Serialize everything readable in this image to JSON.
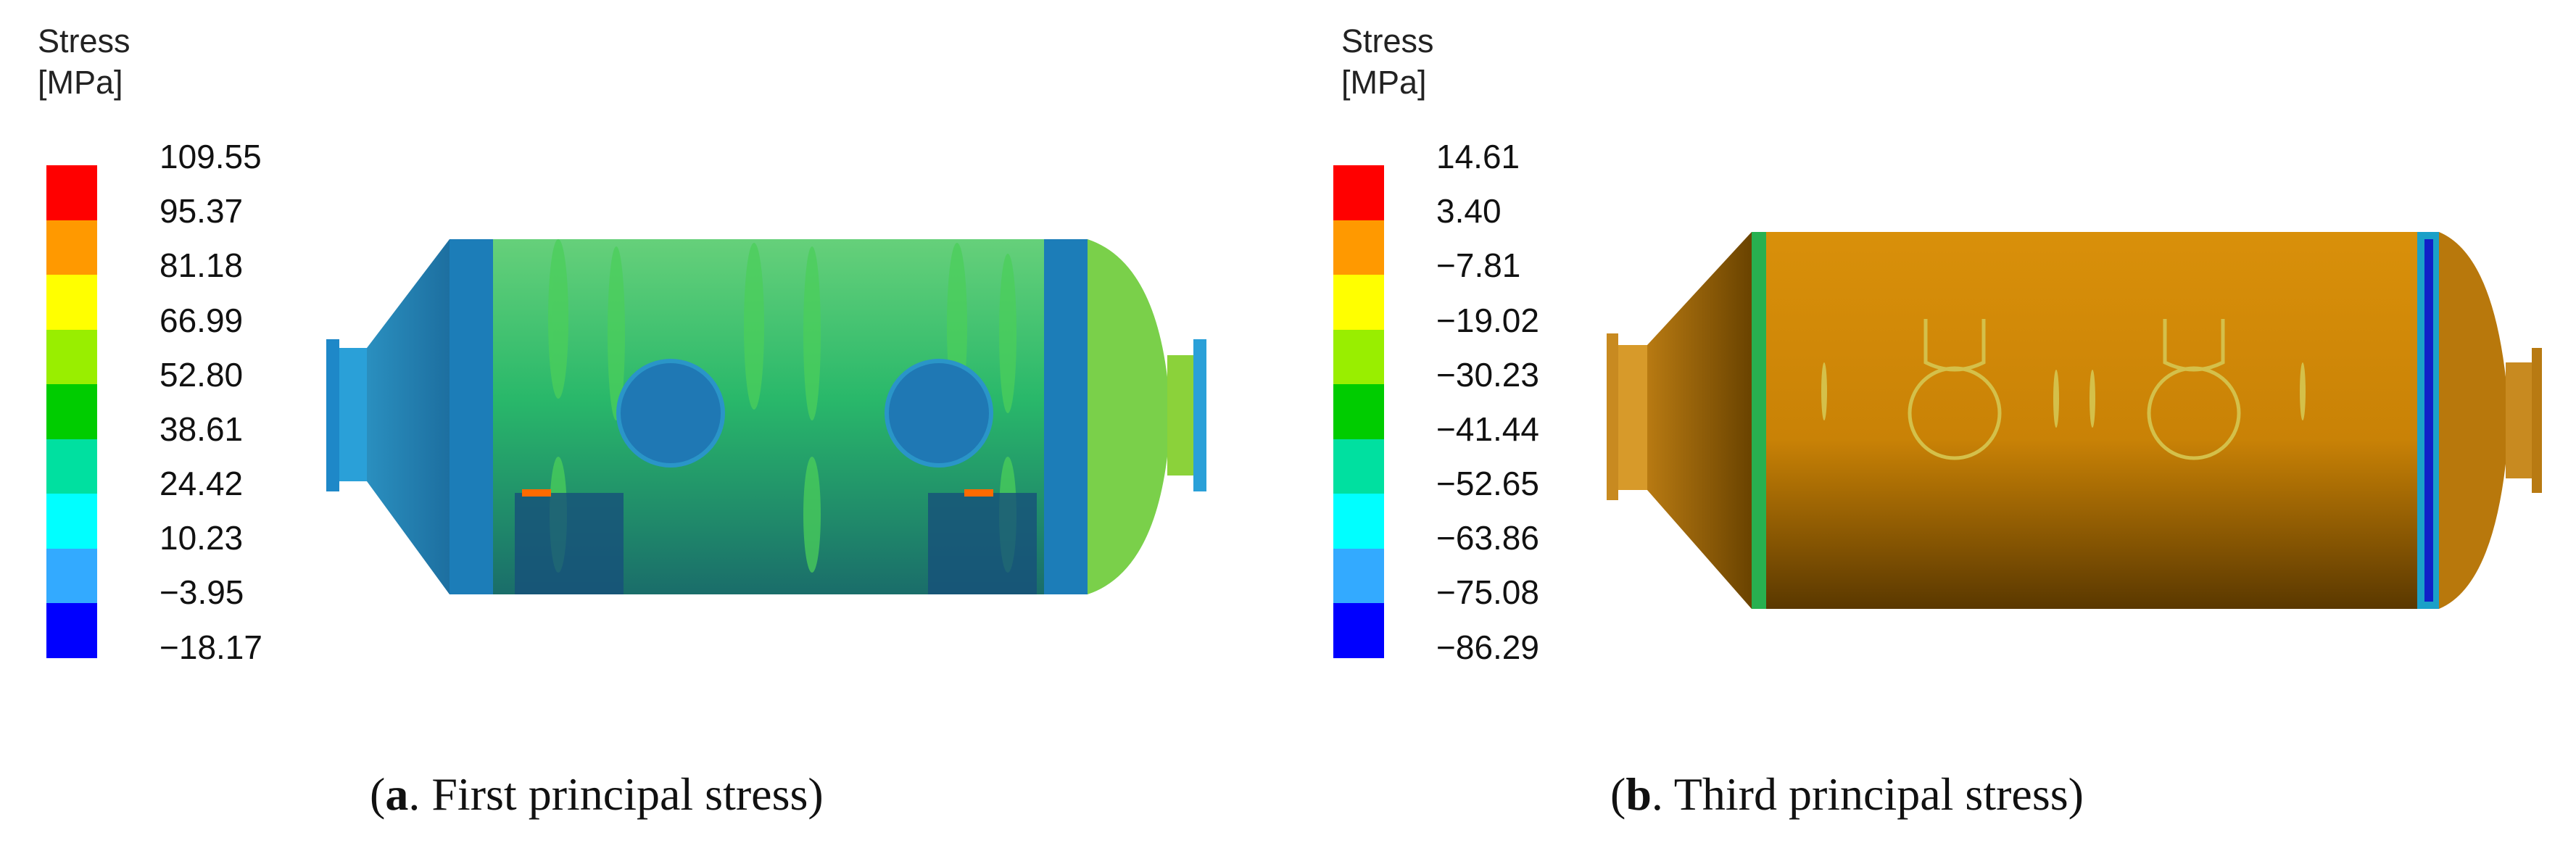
{
  "legend_a": {
    "title_line1": "Stress",
    "title_line2": "[MPa]",
    "ticks": [
      "109.55",
      "95.37",
      "81.18",
      "66.99",
      "52.80",
      "38.61",
      "24.42",
      "10.23",
      "−3.95",
      "−18.17"
    ],
    "colors": [
      "#ff0000",
      "#ff9900",
      "#ffff00",
      "#99ee00",
      "#00cc00",
      "#00e0a0",
      "#00ffff",
      "#33aaff",
      "#0000ff"
    ]
  },
  "legend_b": {
    "title_line1": "Stress",
    "title_line2": "[MPa]",
    "ticks": [
      "14.61",
      "3.40",
      "−7.81",
      "−19.02",
      "−30.23",
      "−41.44",
      "−52.65",
      "−63.86",
      "−75.08",
      "−86.29"
    ],
    "colors": [
      "#ff0000",
      "#ff9900",
      "#ffff00",
      "#99ee00",
      "#00cc00",
      "#00e0a0",
      "#00ffff",
      "#33aaff",
      "#0000ff"
    ]
  },
  "caption_a": {
    "letter": "a",
    "text": ". First principal stress"
  },
  "caption_b": {
    "letter": "b",
    "text": ". Third principal stress"
  }
}
